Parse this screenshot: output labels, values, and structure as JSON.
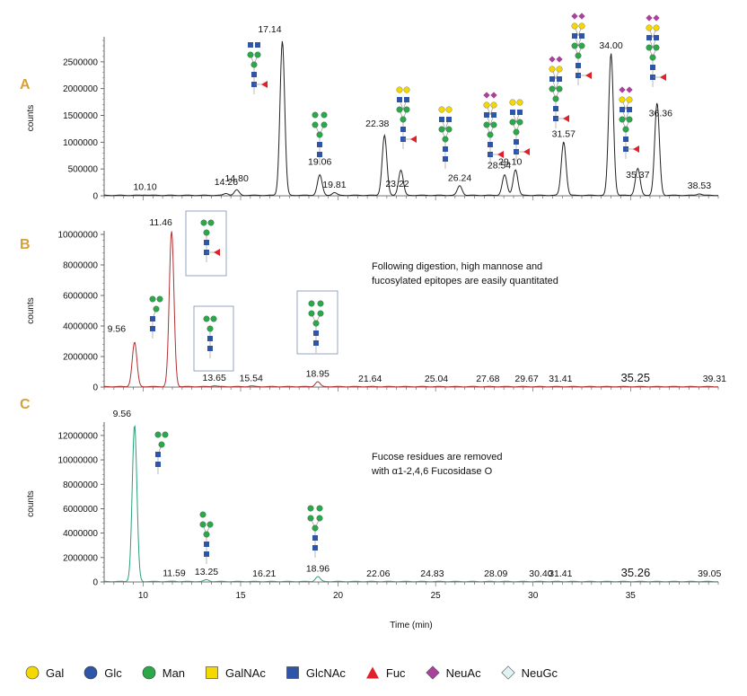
{
  "chart_data": [
    {
      "type": "line",
      "panel": "A",
      "ylabel": "counts",
      "xlim": [
        8,
        39.5
      ],
      "ylim": [
        0,
        2900000
      ],
      "yticks": [
        0,
        500000,
        1000000,
        1500000,
        2000000,
        2500000
      ],
      "line_color": "#222222",
      "peaks": [
        {
          "x": 10.1,
          "y": 8000
        },
        {
          "x": 14.26,
          "y": 35000
        },
        {
          "x": 14.8,
          "y": 100000
        },
        {
          "x": 17.14,
          "y": 2880000
        },
        {
          "x": 19.06,
          "y": 380000
        },
        {
          "x": 19.81,
          "y": 50000
        },
        {
          "x": 22.38,
          "y": 1120000
        },
        {
          "x": 23.22,
          "y": 470000
        },
        {
          "x": 26.24,
          "y": 180000
        },
        {
          "x": 28.54,
          "y": 380000
        },
        {
          "x": 29.1,
          "y": 480000
        },
        {
          "x": 31.57,
          "y": 1000000
        },
        {
          "x": 34.0,
          "y": 2650000
        },
        {
          "x": 35.37,
          "y": 500000
        },
        {
          "x": 36.36,
          "y": 1720000
        },
        {
          "x": 38.53,
          "y": 30000
        }
      ],
      "labels": [
        "10.10",
        "14.26",
        "14.80",
        "17.14",
        "19.06",
        "19.81",
        "22.38",
        "23.22",
        "26.24",
        "28.54",
        "29.10",
        "31.57",
        "34.00",
        "35.37",
        "36.36",
        "38.53"
      ]
    },
    {
      "type": "line",
      "panel": "B",
      "ylabel": "counts",
      "xlim": [
        8,
        39.5
      ],
      "ylim": [
        0,
        10000000
      ],
      "yticks": [
        0,
        2000000,
        4000000,
        6000000,
        8000000,
        10000000
      ],
      "line_color": "#b03030",
      "peaks": [
        {
          "x": 9.56,
          "y": 2900000
        },
        {
          "x": 11.46,
          "y": 10200000
        },
        {
          "x": 13.65,
          "y": 60000
        },
        {
          "x": 15.54,
          "y": 40000
        },
        {
          "x": 18.95,
          "y": 320000
        },
        {
          "x": 21.64,
          "y": 0
        },
        {
          "x": 25.04,
          "y": 0
        },
        {
          "x": 27.68,
          "y": 0
        },
        {
          "x": 29.67,
          "y": 0
        },
        {
          "x": 31.41,
          "y": 0
        },
        {
          "x": 35.25,
          "y": 0
        },
        {
          "x": 39.31,
          "y": 0
        }
      ],
      "labels": [
        "9.56",
        "11.46",
        "13.65",
        "15.54",
        "18.95",
        "21.64",
        "25.04",
        "27.68",
        "29.67",
        "31.41",
        "35.25",
        "39.31"
      ],
      "annotation": [
        "Following digestion, high mannose and",
        "fucosylated epitopes are easily quantitated"
      ]
    },
    {
      "type": "line",
      "panel": "C",
      "ylabel": "counts",
      "xlabel": "Time (min)",
      "xlim": [
        8,
        39.5
      ],
      "ylim": [
        0,
        12800000
      ],
      "yticks": [
        0,
        2000000,
        4000000,
        6000000,
        8000000,
        10000000,
        12000000
      ],
      "xticks": [
        10,
        15,
        20,
        25,
        30,
        35
      ],
      "line_color": "#2aa07a",
      "peaks": [
        {
          "x": 9.56,
          "y": 12800000
        },
        {
          "x": 11.59,
          "y": 20000
        },
        {
          "x": 13.25,
          "y": 140000
        },
        {
          "x": 16.21,
          "y": 0
        },
        {
          "x": 18.96,
          "y": 400000
        },
        {
          "x": 22.06,
          "y": 0
        },
        {
          "x": 24.83,
          "y": 0
        },
        {
          "x": 28.09,
          "y": 0
        },
        {
          "x": 30.4,
          "y": 0
        },
        {
          "x": 31.41,
          "y": 0
        },
        {
          "x": 35.26,
          "y": 0
        },
        {
          "x": 39.05,
          "y": 0
        }
      ],
      "labels": [
        "9.56",
        "11.59",
        "13.25",
        "16.21",
        "18.96",
        "22.06",
        "24.83",
        "28.09",
        "30.40",
        "31.41",
        "35.26",
        "39.05"
      ],
      "annotation": [
        "Fucose residues are removed",
        "with α1-2,4,6 Fucosidase O"
      ]
    }
  ],
  "legend": [
    {
      "label": "Gal",
      "shape": "circle",
      "color": "#f5d800"
    },
    {
      "label": "Glc",
      "shape": "circle",
      "color": "#2f55a8"
    },
    {
      "label": "Man",
      "shape": "circle",
      "color": "#2aa84a"
    },
    {
      "label": "GalNAc",
      "shape": "square",
      "color": "#f5d800"
    },
    {
      "label": "GlcNAc",
      "shape": "square",
      "color": "#2f55a8"
    },
    {
      "label": "Fuc",
      "shape": "triangle",
      "color": "#e0202a"
    },
    {
      "label": "NeuAc",
      "shape": "diamond",
      "color": "#a8429a"
    },
    {
      "label": "NeuGc",
      "shape": "diamond",
      "color": "#dff2f4"
    }
  ]
}
